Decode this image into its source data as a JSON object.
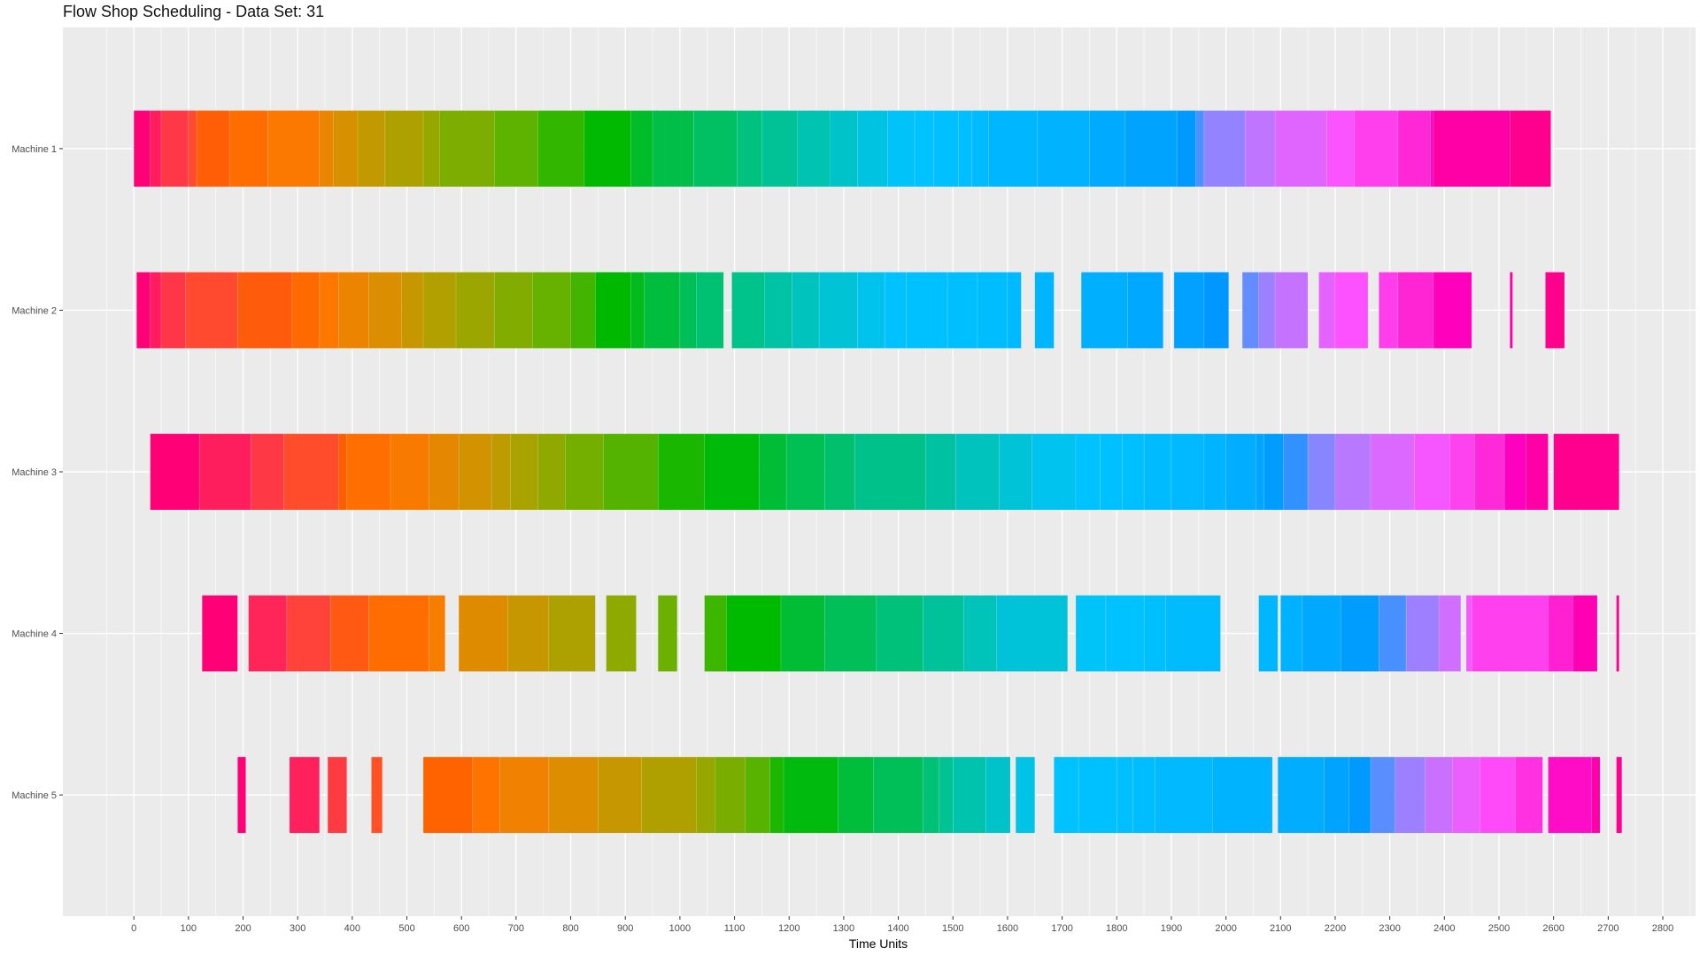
{
  "chart_data": {
    "type": "gantt",
    "title": "Flow Shop Scheduling - Data Set: 31",
    "xlabel": "Time Units",
    "ylabel": "",
    "xlim": [
      -130,
      2860
    ],
    "x_ticks": [
      0,
      100,
      200,
      300,
      400,
      500,
      600,
      700,
      800,
      900,
      1000,
      1100,
      1200,
      1300,
      1400,
      1500,
      1600,
      1700,
      1800,
      1900,
      2000,
      2100,
      2200,
      2300,
      2400,
      2500,
      2600,
      2700,
      2800
    ],
    "grid": true,
    "legend": "none",
    "machines": [
      "Machine 1",
      "Machine 2",
      "Machine 3",
      "Machine 4",
      "Machine 5"
    ],
    "hue_range": [
      15,
      375
    ],
    "ops": [
      [
        [
          0,
          30
        ],
        [
          30,
          50
        ],
        [
          50,
          100
        ],
        [
          100,
          115
        ],
        [
          115,
          175
        ],
        [
          175,
          245
        ],
        [
          245,
          340
        ],
        [
          340,
          365
        ],
        [
          365,
          410
        ],
        [
          410,
          460
        ],
        [
          460,
          530
        ],
        [
          530,
          560
        ],
        [
          560,
          660
        ],
        [
          660,
          740
        ],
        [
          740,
          825
        ],
        [
          825,
          910
        ],
        [
          910,
          950
        ],
        [
          950,
          1025
        ],
        [
          1025,
          1105
        ],
        [
          1105,
          1150
        ],
        [
          1150,
          1215
        ],
        [
          1215,
          1275
        ],
        [
          1275,
          1325
        ],
        [
          1325,
          1380
        ],
        [
          1380,
          1430
        ],
        [
          1430,
          1465
        ],
        [
          1465,
          1510
        ],
        [
          1510,
          1535
        ],
        [
          1535,
          1565
        ],
        [
          1565,
          1655
        ],
        [
          1655,
          1750
        ],
        [
          1750,
          1815
        ],
        [
          1815,
          1910
        ],
        [
          1910,
          1945
        ],
        [
          1945,
          1960
        ],
        [
          1960,
          2035
        ],
        [
          2035,
          2090
        ],
        [
          2090,
          2185
        ],
        [
          2185,
          2235
        ],
        [
          2235,
          2315
        ],
        [
          2315,
          2375
        ],
        [
          2375,
          2380
        ],
        [
          2380,
          2520
        ],
        [
          2520,
          2595
        ]
      ],
      [
        [
          5,
          30
        ],
        [
          30,
          50
        ],
        [
          50,
          95
        ],
        [
          95,
          190
        ],
        [
          190,
          290
        ],
        [
          290,
          340
        ],
        [
          340,
          375
        ],
        [
          375,
          430
        ],
        [
          430,
          490
        ],
        [
          490,
          530
        ],
        [
          530,
          590
        ],
        [
          590,
          660
        ],
        [
          660,
          730
        ],
        [
          730,
          800
        ],
        [
          800,
          845
        ],
        [
          845,
          910
        ],
        [
          910,
          935
        ],
        [
          935,
          1000
        ],
        [
          1000,
          1030
        ],
        [
          1030,
          1080
        ],
        [
          1095,
          1155
        ],
        [
          1155,
          1205
        ],
        [
          1205,
          1255
        ],
        [
          1255,
          1325
        ],
        [
          1325,
          1375
        ],
        [
          1375,
          1415
        ],
        [
          1415,
          1490
        ],
        [
          1490,
          1545
        ],
        [
          1545,
          1600
        ],
        [
          1600,
          1625
        ],
        [
          1650,
          1685
        ],
        [
          1735,
          1820
        ],
        [
          1820,
          1885
        ],
        [
          1905,
          1960
        ],
        [
          1960,
          2005
        ],
        [
          2030,
          2060
        ],
        [
          2060,
          2090
        ],
        [
          2090,
          2150
        ],
        [
          2170,
          2200
        ],
        [
          2200,
          2260
        ],
        [
          2280,
          2315
        ],
        [
          2315,
          2380
        ],
        [
          2380,
          2450
        ],
        [
          2520,
          2525
        ],
        [
          2585,
          2620
        ]
      ],
      [
        [
          30,
          120
        ],
        [
          120,
          215
        ],
        [
          215,
          275
        ],
        [
          275,
          375
        ],
        [
          375,
          390
        ],
        [
          390,
          470
        ],
        [
          470,
          540
        ],
        [
          540,
          595
        ],
        [
          595,
          655
        ],
        [
          655,
          690
        ],
        [
          690,
          740
        ],
        [
          740,
          790
        ],
        [
          790,
          860
        ],
        [
          860,
          960
        ],
        [
          960,
          1045
        ],
        [
          1045,
          1145
        ],
        [
          1145,
          1195
        ],
        [
          1195,
          1265
        ],
        [
          1265,
          1320
        ],
        [
          1320,
          1450
        ],
        [
          1450,
          1505
        ],
        [
          1505,
          1585
        ],
        [
          1585,
          1645
        ],
        [
          1645,
          1725
        ],
        [
          1725,
          1770
        ],
        [
          1770,
          1810
        ],
        [
          1810,
          1850
        ],
        [
          1850,
          1900
        ],
        [
          1900,
          1960
        ],
        [
          1960,
          2000
        ],
        [
          2000,
          2055
        ],
        [
          2055,
          2070
        ],
        [
          2070,
          2105
        ],
        [
          2105,
          2150
        ],
        [
          2150,
          2200
        ],
        [
          2200,
          2265
        ],
        [
          2265,
          2345
        ],
        [
          2345,
          2410
        ],
        [
          2410,
          2455
        ],
        [
          2455,
          2510
        ],
        [
          2510,
          2550
        ],
        [
          2550,
          2590
        ],
        [
          2600,
          2720
        ]
      ],
      [
        [
          125,
          190
        ],
        [
          210,
          280
        ],
        [
          280,
          360
        ],
        [
          360,
          430
        ],
        [
          430,
          540
        ],
        [
          540,
          570
        ],
        [
          595,
          685
        ],
        [
          685,
          760
        ],
        [
          760,
          845
        ],
        [
          865,
          920
        ],
        [
          960,
          995
        ],
        [
          1045,
          1085
        ],
        [
          1085,
          1185
        ],
        [
          1185,
          1265
        ],
        [
          1265,
          1360
        ],
        [
          1360,
          1445
        ],
        [
          1445,
          1520
        ],
        [
          1520,
          1580
        ],
        [
          1580,
          1710
        ],
        [
          1725,
          1780
        ],
        [
          1780,
          1850
        ],
        [
          1850,
          1890
        ],
        [
          1890,
          1990
        ],
        [
          2060,
          2095
        ],
        [
          2100,
          2140
        ],
        [
          2140,
          2210
        ],
        [
          2210,
          2280
        ],
        [
          2280,
          2330
        ],
        [
          2330,
          2390
        ],
        [
          2390,
          2430
        ],
        [
          2440,
          2450
        ],
        [
          2450,
          2590
        ],
        [
          2590,
          2635
        ],
        [
          2635,
          2680
        ],
        [
          2715,
          2720
        ]
      ],
      [
        [
          190,
          205
        ],
        [
          285,
          340
        ],
        [
          355,
          390
        ],
        [
          435,
          455
        ],
        [
          530,
          620
        ],
        [
          620,
          670
        ],
        [
          670,
          760
        ],
        [
          760,
          850
        ],
        [
          850,
          930
        ],
        [
          930,
          1030
        ],
        [
          1030,
          1065
        ],
        [
          1065,
          1120
        ],
        [
          1120,
          1165
        ],
        [
          1165,
          1190
        ],
        [
          1190,
          1290
        ],
        [
          1290,
          1355
        ],
        [
          1355,
          1445
        ],
        [
          1445,
          1475
        ],
        [
          1475,
          1500
        ],
        [
          1500,
          1560
        ],
        [
          1560,
          1605
        ],
        [
          1615,
          1650
        ],
        [
          1685,
          1730
        ],
        [
          1730,
          1800
        ],
        [
          1800,
          1830
        ],
        [
          1830,
          1870
        ],
        [
          1870,
          1975
        ],
        [
          1975,
          2085
        ],
        [
          2095,
          2180
        ],
        [
          2180,
          2225
        ],
        [
          2225,
          2265
        ],
        [
          2265,
          2310
        ],
        [
          2310,
          2365
        ],
        [
          2365,
          2415
        ],
        [
          2415,
          2465
        ],
        [
          2465,
          2530
        ],
        [
          2530,
          2580
        ],
        [
          2590,
          2670
        ],
        [
          2670,
          2685
        ],
        [
          2715,
          2725
        ]
      ]
    ]
  }
}
